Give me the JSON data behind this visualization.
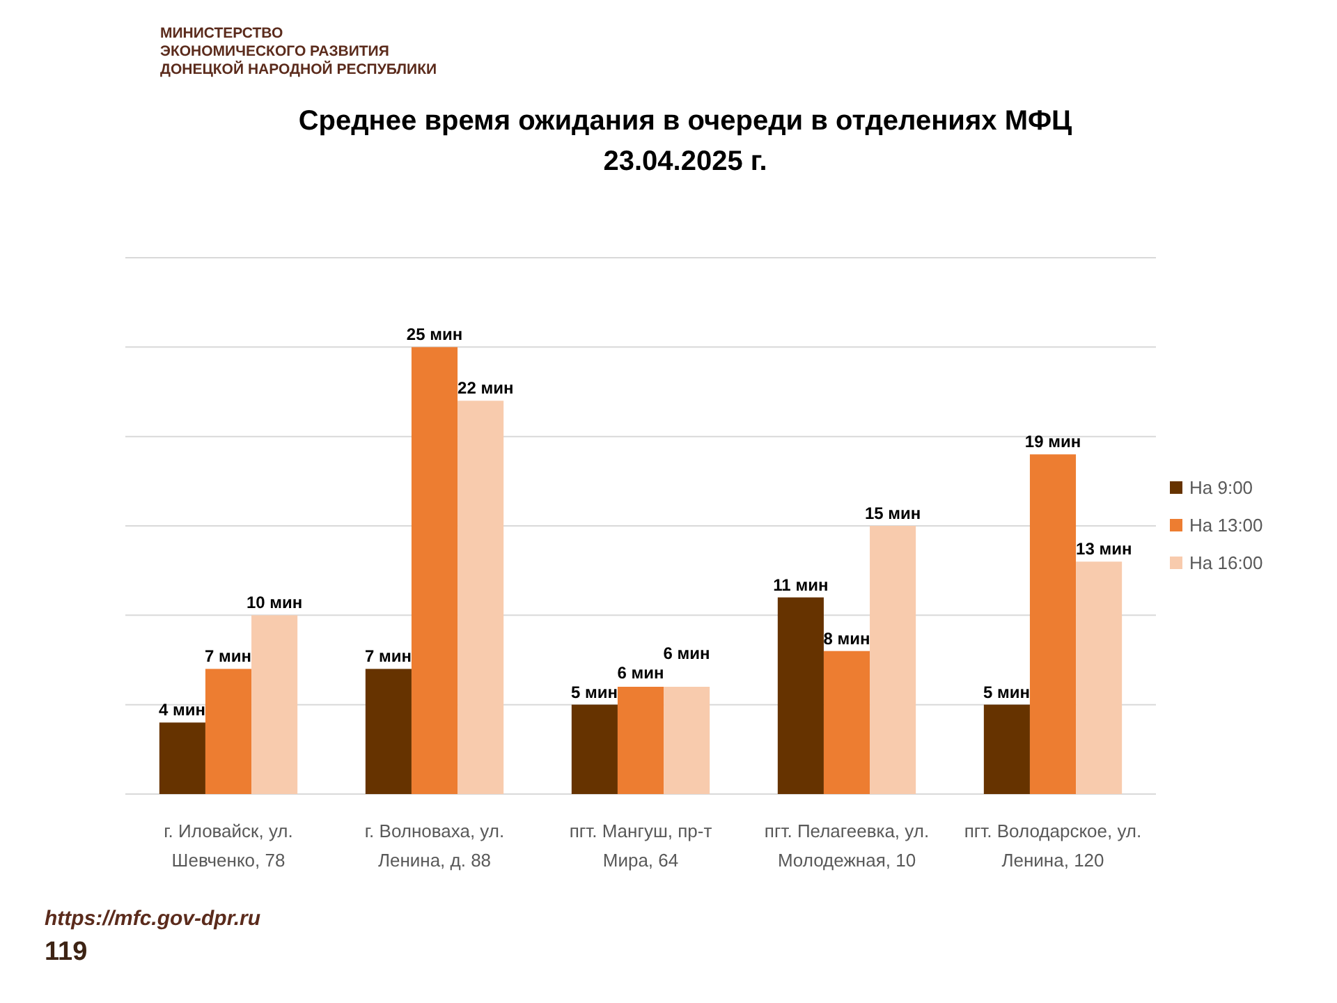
{
  "chart_data": {
    "type": "bar",
    "title": "Среднее время ожидания в очереди в отделениях МФЦ\n23.04.2025 г.",
    "categories": [
      "г. Иловайск, ул. Шевченко, 78",
      "г. Волноваха, ул. Ленина, д. 88",
      "пгт. Мангуш, пр-т Мира, 64",
      "пгт. Пелагеевка, ул. Молодежная, 10",
      "пгт. Володарское, ул. Ленина, 120"
    ],
    "series": [
      {
        "name": "На 9:00",
        "color": "#663300",
        "values": [
          4,
          7,
          5,
          11,
          5
        ],
        "value_labels": [
          "4 мин",
          "7 мин",
          "5 мин",
          "11 мин",
          "5 мин"
        ]
      },
      {
        "name": "На 13:00",
        "color": "#ed7d31",
        "values": [
          7,
          25,
          6,
          8,
          19
        ],
        "value_labels": [
          "7 мин",
          "25 мин",
          "6 мин",
          "8 мин",
          "19 мин"
        ]
      },
      {
        "name": "На 16:00",
        "color": "#f8cbad",
        "values": [
          10,
          22,
          6,
          15,
          13
        ],
        "value_labels": [
          "10 мин",
          "22 мин",
          "6 мин",
          "15 мин",
          "13 мин"
        ]
      }
    ],
    "ylim": [
      0,
      30
    ],
    "yticks": [
      {
        "value": 0,
        "label": null
      },
      {
        "value": 5,
        "label": null
      },
      {
        "value": 10,
        "label": null
      },
      {
        "value": 15,
        "label": null
      },
      {
        "value": 20,
        "label": null
      },
      {
        "value": 25,
        "label": null
      },
      {
        "value": 30,
        "label": null
      }
    ],
    "grid": "y",
    "legend": "right",
    "tick_labels": "x",
    "annotations": [
      "МИНИСТЕРСТВО\nЭКОНОМИЧЕСКОГО РАЗВИТИЯ\nДОНЕЦКОЙ НАРОДНОЙ РЕСПУБЛИКИ",
      "https://mfc.gov-dpr.ru",
      "119"
    ]
  }
}
